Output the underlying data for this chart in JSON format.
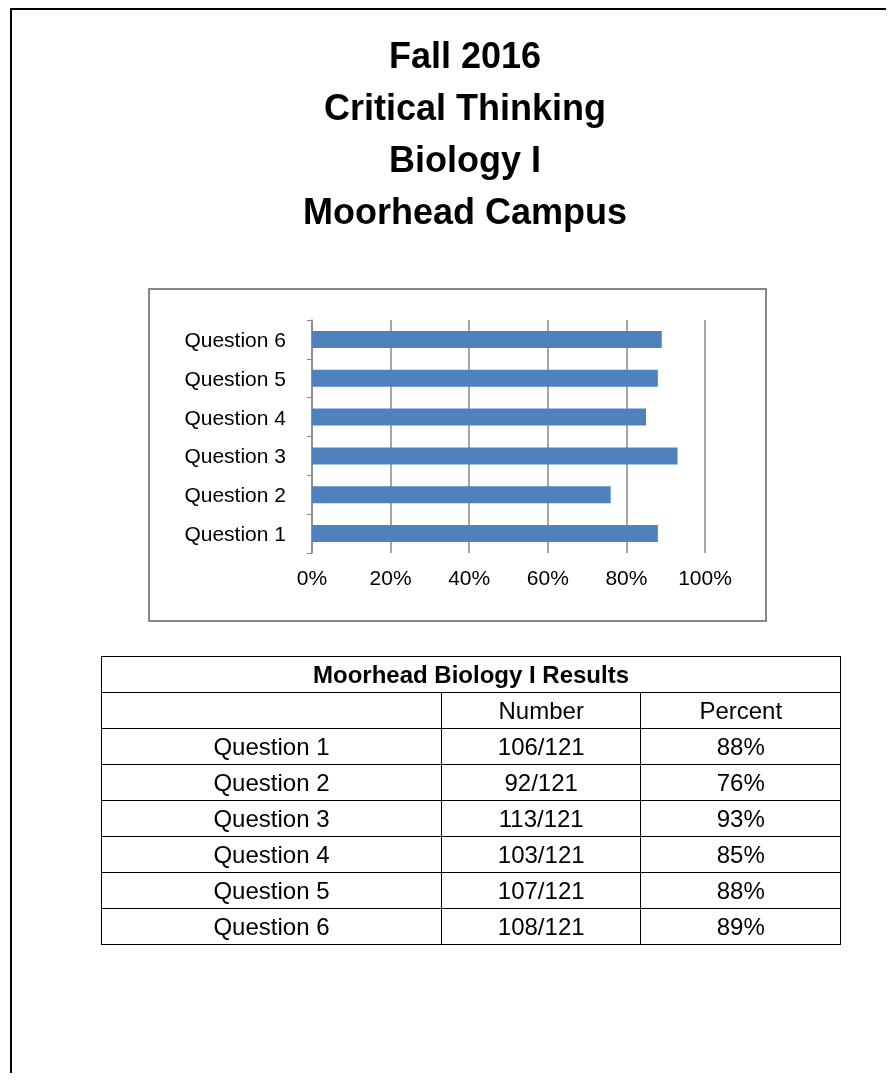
{
  "chart_data": [
    {
      "type": "bar",
      "title": "Fall 2016\nCritical Thinking\nBiology I\nMoorhead Campus",
      "orientation": "horizontal",
      "categories": [
        "Question 6",
        "Question 5",
        "Question 4",
        "Question 3",
        "Question 2",
        "Question 1"
      ],
      "values": [
        89,
        88,
        85,
        93,
        76,
        88
      ],
      "color": "#4f81bd",
      "xlim": [
        0,
        100
      ],
      "xticks": [
        {
          "value": 0,
          "label": "0%"
        },
        {
          "value": 20,
          "label": "20%"
        },
        {
          "value": 40,
          "label": "40%"
        },
        {
          "value": 60,
          "label": "60%"
        },
        {
          "value": 80,
          "label": "80%"
        },
        {
          "value": 100,
          "label": "100%"
        }
      ],
      "grid": "x"
    },
    {
      "type": "other",
      "title": "Moorhead Biology I Results",
      "categories": [
        "Question 1",
        "Question 2",
        "Question 3",
        "Question 4",
        "Question 5",
        "Question 6"
      ],
      "series": [
        {
          "name": "Number",
          "values": [
            106,
            92,
            113,
            103,
            107,
            108
          ],
          "value_labels": [
            "106/121",
            "92/121",
            "113/121",
            "103/121",
            "107/121",
            "108/121"
          ]
        },
        {
          "name": "Percent",
          "values": [
            88,
            76,
            93,
            85,
            88,
            89
          ],
          "value_labels": [
            "88%",
            "76%",
            "93%",
            "85%",
            "88%",
            "89%"
          ]
        }
      ]
    }
  ]
}
